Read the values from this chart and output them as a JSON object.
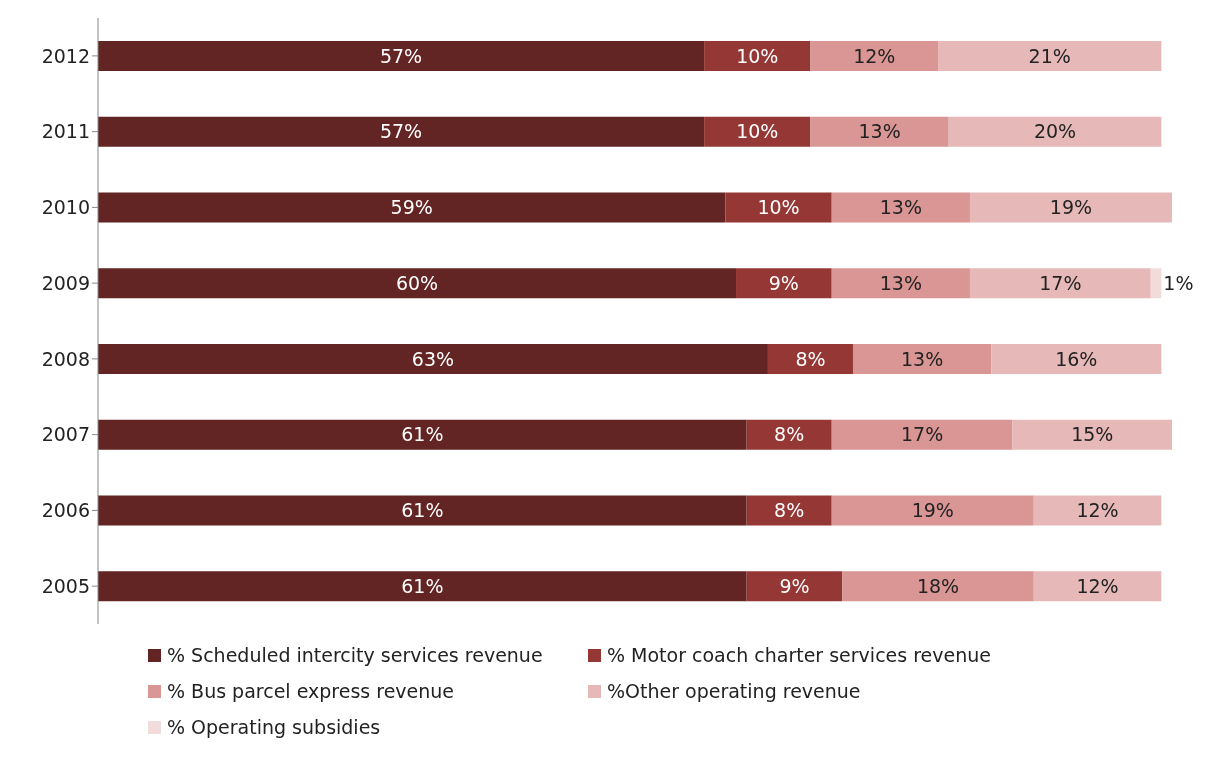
{
  "chart_data": {
    "type": "bar",
    "orientation": "horizontal",
    "stacked": true,
    "categories": [
      "2012",
      "2011",
      "2010",
      "2009",
      "2008",
      "2007",
      "2006",
      "2005"
    ],
    "series": [
      {
        "name": "% Scheduled intercity services revenue",
        "color": "#632523",
        "values": [
          57,
          57,
          59,
          60,
          63,
          61,
          61,
          61
        ],
        "value_labels": [
          "57%",
          "57%",
          "59%",
          "60%",
          "63%",
          "61%",
          "61%",
          "61%"
        ]
      },
      {
        "name": "% Motor coach charter services revenue",
        "color": "#953735",
        "values": [
          10,
          10,
          10,
          9,
          8,
          8,
          8,
          9
        ],
        "value_labels": [
          "10%",
          "10%",
          "10%",
          "9%",
          "8%",
          "8%",
          "8%",
          "9%"
        ]
      },
      {
        "name": "% Bus parcel express revenue",
        "color": "#d99694",
        "values": [
          12,
          13,
          13,
          13,
          13,
          17,
          19,
          18
        ],
        "value_labels": [
          "12%",
          "13%",
          "13%",
          "13%",
          "13%",
          "17%",
          "19%",
          "18%"
        ]
      },
      {
        "name": "%Other operating revenue",
        "color": "#e6b9b8",
        "values": [
          21,
          20,
          19,
          17,
          16,
          15,
          12,
          12
        ],
        "value_labels": [
          "21%",
          "20%",
          "19%",
          "17%",
          "16%",
          "15%",
          "12%",
          "12%"
        ]
      },
      {
        "name": "% Operating subsidies",
        "color": "#f2dcdb",
        "values": [
          null,
          null,
          null,
          1,
          null,
          null,
          null,
          null
        ],
        "value_labels": [
          null,
          null,
          null,
          "1%",
          null,
          null,
          null,
          null
        ]
      }
    ],
    "legend": "bottom"
  }
}
